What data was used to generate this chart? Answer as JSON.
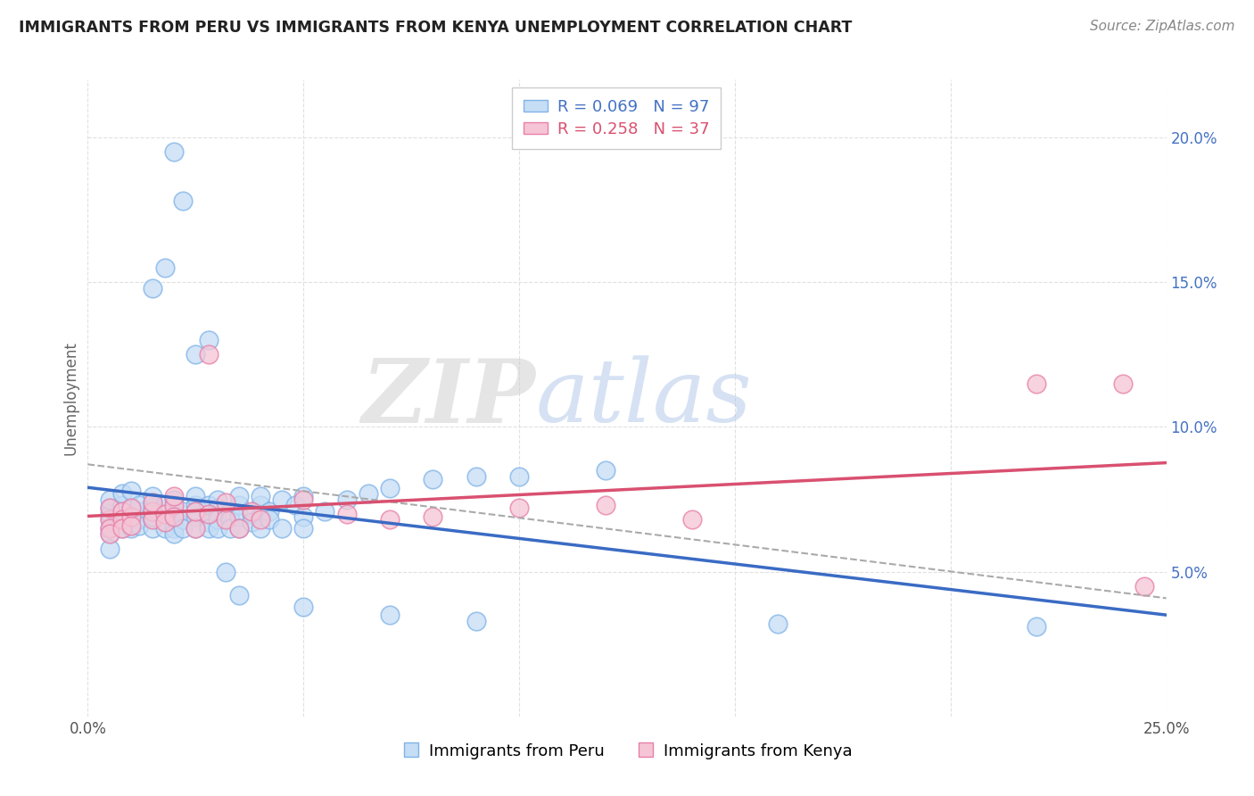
{
  "title": "IMMIGRANTS FROM PERU VS IMMIGRANTS FROM KENYA UNEMPLOYMENT CORRELATION CHART",
  "source": "Source: ZipAtlas.com",
  "ylabel": "Unemployment",
  "xlim": [
    0.0,
    0.25
  ],
  "ylim": [
    0.0,
    0.22
  ],
  "xtick_vals": [
    0.0,
    0.05,
    0.1,
    0.15,
    0.2,
    0.25
  ],
  "xtick_labels": [
    "0.0%",
    "",
    "",
    "",
    "",
    "25.0%"
  ],
  "ytick_vals": [
    0.05,
    0.1,
    0.15,
    0.2
  ],
  "ytick_labels_right": [
    "5.0%",
    "10.0%",
    "15.0%",
    "20.0%"
  ],
  "legend_peru_r": "R = 0.069",
  "legend_peru_n": "N = 97",
  "legend_kenya_r": "R = 0.258",
  "legend_kenya_n": "N = 37",
  "peru_fill_color": "#c5ddf5",
  "peru_edge_color": "#7fb3e8",
  "kenya_fill_color": "#f5c5d5",
  "kenya_edge_color": "#e87fa8",
  "peru_line_color": "#3a6bc4",
  "kenya_line_color": "#d95070",
  "dashed_line_color": "#aaaaaa",
  "watermark_text": "ZIPatlas",
  "watermark_color": "#d8e8f5",
  "r_color_peru": "#4472c4",
  "r_color_kenya": "#d95070",
  "n_color_peru": "#e06080",
  "n_color_kenya": "#e06080",
  "grid_color": "#e0e0e0",
  "title_color": "#222222",
  "source_color": "#888888",
  "peru_x": [
    0.005,
    0.005,
    0.005,
    0.005,
    0.005,
    0.005,
    0.005,
    0.008,
    0.008,
    0.008,
    0.008,
    0.008,
    0.01,
    0.01,
    0.01,
    0.01,
    0.01,
    0.01,
    0.012,
    0.012,
    0.012,
    0.012,
    0.015,
    0.015,
    0.015,
    0.015,
    0.015,
    0.015,
    0.015,
    0.018,
    0.018,
    0.018,
    0.018,
    0.02,
    0.02,
    0.02,
    0.02,
    0.02,
    0.02,
    0.022,
    0.022,
    0.022,
    0.025,
    0.025,
    0.025,
    0.025,
    0.025,
    0.028,
    0.028,
    0.028,
    0.028,
    0.03,
    0.03,
    0.03,
    0.03,
    0.033,
    0.033,
    0.033,
    0.035,
    0.035,
    0.035,
    0.035,
    0.038,
    0.038,
    0.04,
    0.04,
    0.04,
    0.04,
    0.042,
    0.042,
    0.045,
    0.045,
    0.048,
    0.05,
    0.05,
    0.05,
    0.055,
    0.06,
    0.065,
    0.07,
    0.08,
    0.09,
    0.1,
    0.12,
    0.015,
    0.018,
    0.02,
    0.022,
    0.025,
    0.028,
    0.032,
    0.035,
    0.05,
    0.07,
    0.09,
    0.16,
    0.22
  ],
  "peru_y": [
    0.068,
    0.072,
    0.065,
    0.063,
    0.07,
    0.075,
    0.058,
    0.071,
    0.068,
    0.065,
    0.073,
    0.077,
    0.069,
    0.066,
    0.072,
    0.068,
    0.065,
    0.078,
    0.071,
    0.068,
    0.073,
    0.066,
    0.071,
    0.068,
    0.074,
    0.065,
    0.069,
    0.072,
    0.076,
    0.07,
    0.067,
    0.073,
    0.065,
    0.072,
    0.068,
    0.075,
    0.065,
    0.069,
    0.063,
    0.071,
    0.068,
    0.065,
    0.073,
    0.069,
    0.076,
    0.065,
    0.071,
    0.07,
    0.067,
    0.073,
    0.065,
    0.072,
    0.068,
    0.075,
    0.065,
    0.071,
    0.068,
    0.065,
    0.073,
    0.069,
    0.076,
    0.065,
    0.07,
    0.067,
    0.073,
    0.069,
    0.076,
    0.065,
    0.071,
    0.068,
    0.075,
    0.065,
    0.073,
    0.069,
    0.076,
    0.065,
    0.071,
    0.075,
    0.077,
    0.079,
    0.082,
    0.083,
    0.083,
    0.085,
    0.148,
    0.155,
    0.195,
    0.178,
    0.125,
    0.13,
    0.05,
    0.042,
    0.038,
    0.035,
    0.033,
    0.032,
    0.031
  ],
  "kenya_x": [
    0.005,
    0.005,
    0.005,
    0.005,
    0.008,
    0.008,
    0.008,
    0.01,
    0.01,
    0.01,
    0.015,
    0.015,
    0.015,
    0.018,
    0.018,
    0.02,
    0.02,
    0.02,
    0.025,
    0.025,
    0.028,
    0.028,
    0.032,
    0.032,
    0.035,
    0.038,
    0.04,
    0.05,
    0.06,
    0.07,
    0.08,
    0.1,
    0.12,
    0.24,
    0.245,
    0.22,
    0.14
  ],
  "kenya_y": [
    0.068,
    0.072,
    0.065,
    0.063,
    0.071,
    0.068,
    0.065,
    0.069,
    0.066,
    0.072,
    0.071,
    0.068,
    0.074,
    0.07,
    0.067,
    0.073,
    0.069,
    0.076,
    0.065,
    0.071,
    0.07,
    0.125,
    0.068,
    0.074,
    0.065,
    0.071,
    0.068,
    0.075,
    0.07,
    0.068,
    0.069,
    0.072,
    0.073,
    0.115,
    0.045,
    0.115,
    0.068
  ]
}
